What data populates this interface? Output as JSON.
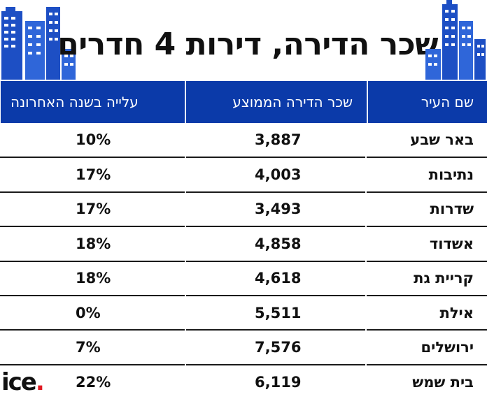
{
  "title": "שכר הדירה, דירות 4 חדרים",
  "columns": {
    "city": "שם העיר",
    "rent": "שכר הדירה הממוצע",
    "rise": "עלייה בשנה האחרונה"
  },
  "rows": [
    {
      "city": "באר שבע",
      "rent": "3,887",
      "rise": "10%"
    },
    {
      "city": "נתיבות",
      "rent": "4,003",
      "rise": "17%"
    },
    {
      "city": "שדרות",
      "rent": "3,493",
      "rise": "17%"
    },
    {
      "city": "אשדוד",
      "rent": "4,858",
      "rise": "18%"
    },
    {
      "city": "קריית גת",
      "rent": "4,618",
      "rise": "18%"
    },
    {
      "city": "אילת",
      "rent": "5,511",
      "rise": "0%"
    },
    {
      "city": "ירושלים",
      "rent": "7,576",
      "rise": "7%"
    },
    {
      "city": "בית שמש",
      "rent": "6,119",
      "rise": "22%"
    }
  ],
  "logo": {
    "text": "ice",
    "dot": "."
  },
  "colors": {
    "header_bg": "#0b3aa9",
    "logo_dot": "#e01a22",
    "text": "#111111"
  },
  "chart_data": {
    "type": "table",
    "title": "שכר הדירה, דירות 4 חדרים",
    "columns": [
      "שם העיר",
      "שכר הדירה הממוצע",
      "עלייה בשנה האחרונה"
    ],
    "rows": [
      [
        "באר שבע",
        3887,
        "10%"
      ],
      [
        "נתיבות",
        4003,
        "17%"
      ],
      [
        "שדרות",
        3493,
        "17%"
      ],
      [
        "אשדוד",
        4858,
        "18%"
      ],
      [
        "קריית גת",
        4618,
        "18%"
      ],
      [
        "אילת",
        5511,
        "0%"
      ],
      [
        "ירושלים",
        7576,
        "7%"
      ],
      [
        "בית שמש",
        6119,
        "22%"
      ]
    ]
  }
}
